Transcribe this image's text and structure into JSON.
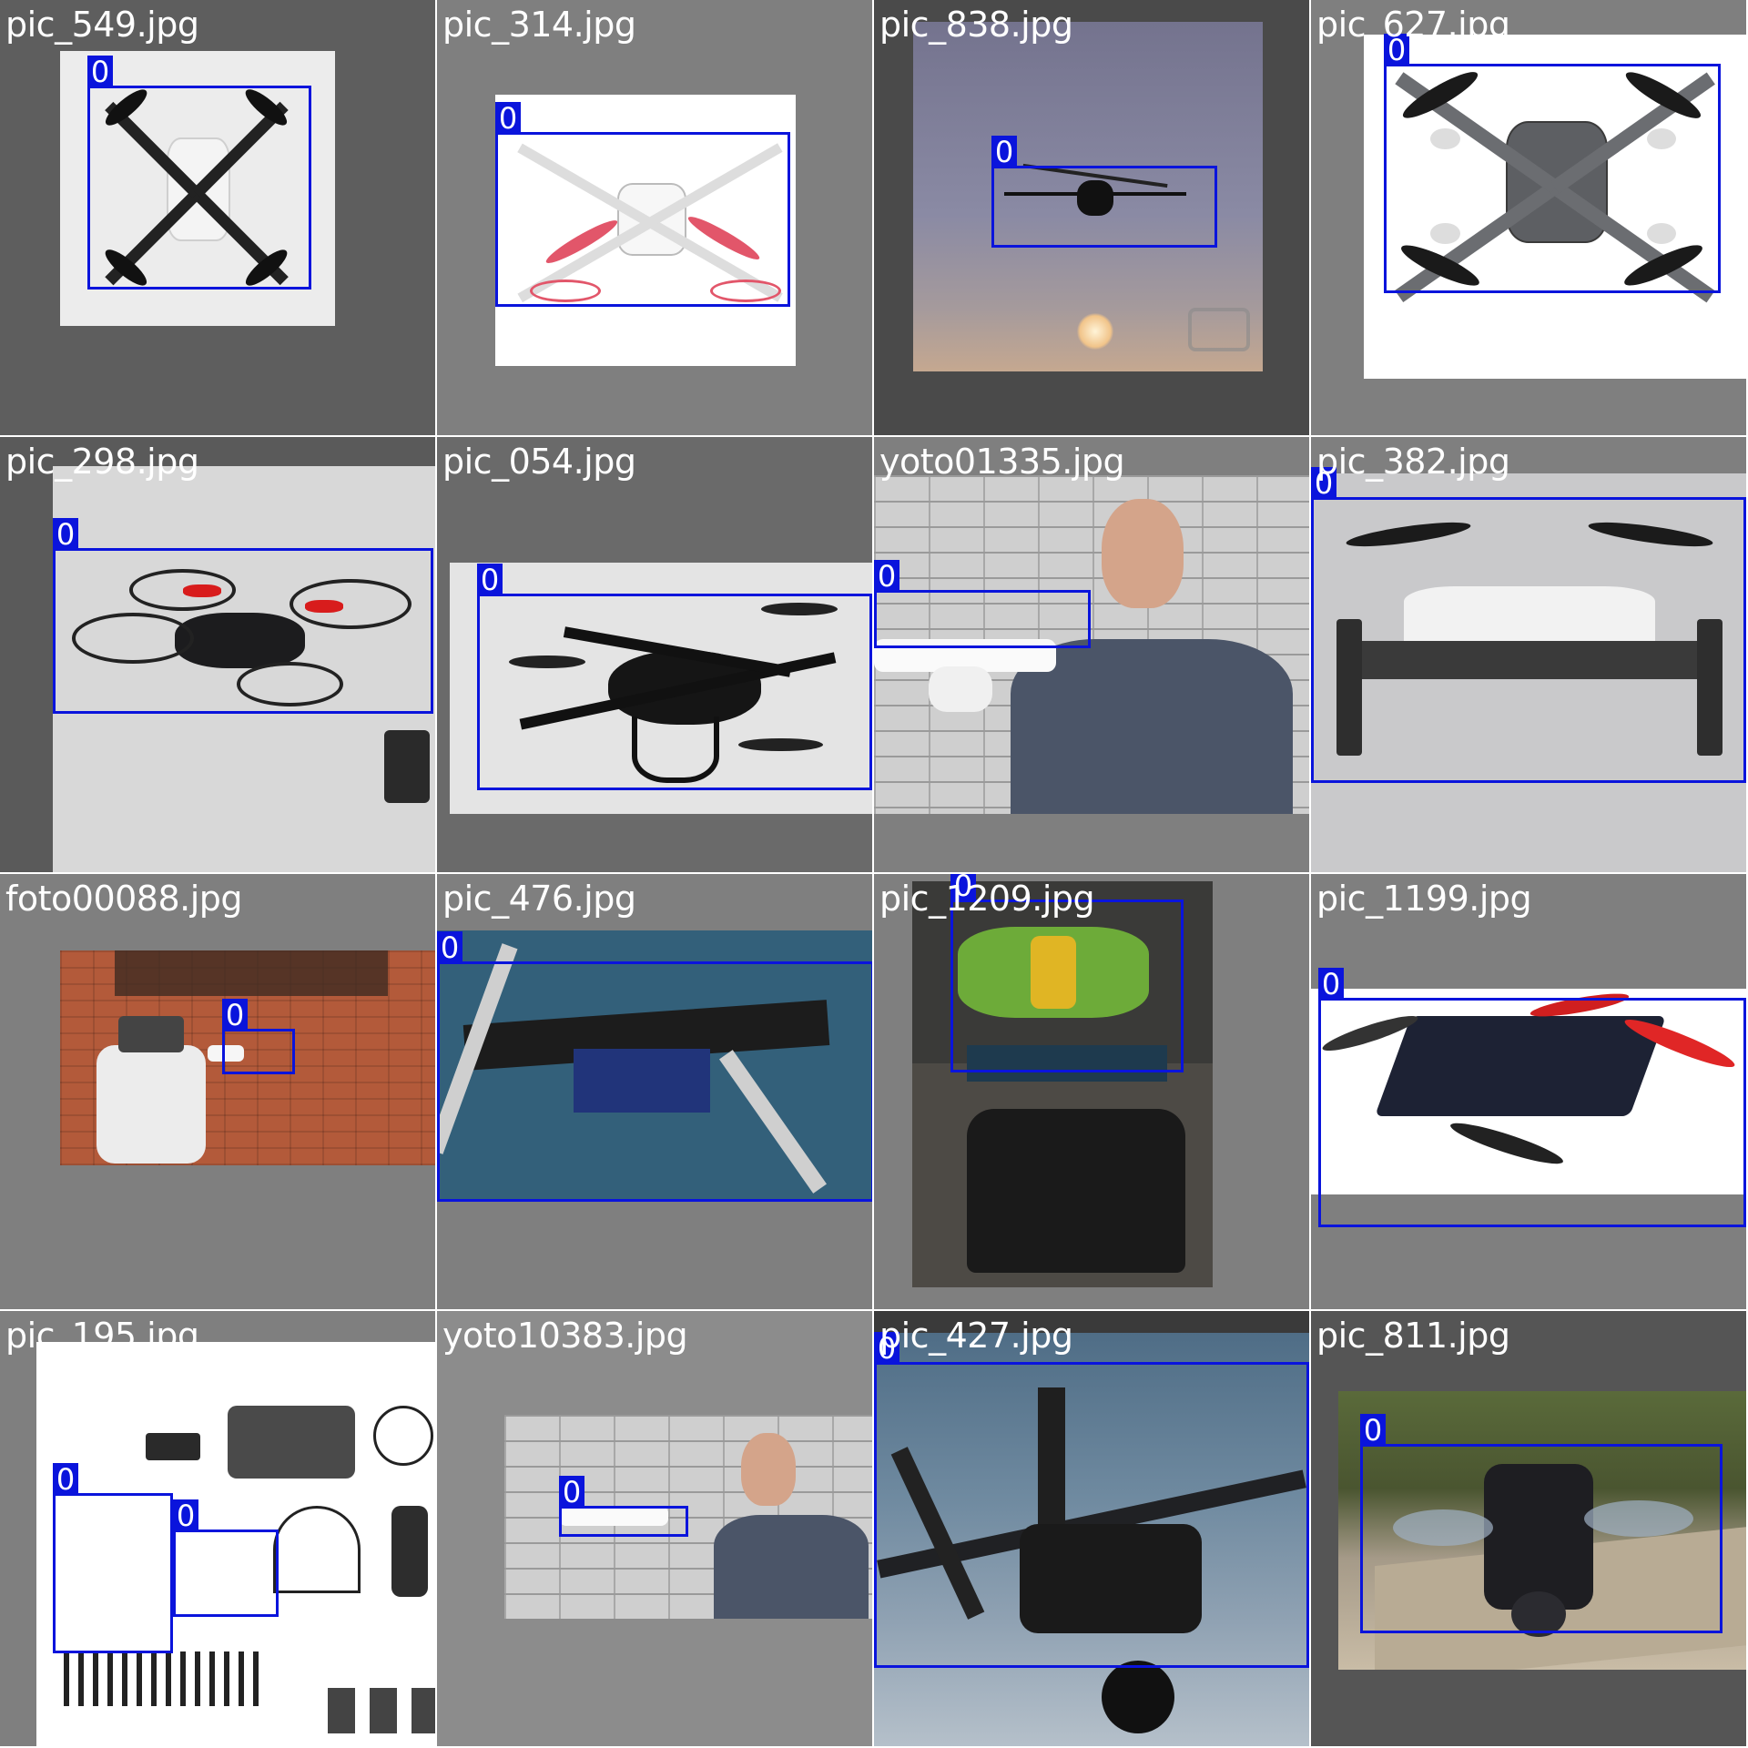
{
  "mosaic": {
    "class_label": "0",
    "tiles": [
      {
        "filename": "pic_549.jpg"
      },
      {
        "filename": "pic_314.jpg"
      },
      {
        "filename": "pic_838.jpg"
      },
      {
        "filename": "pic_627.jpg"
      },
      {
        "filename": "pic_298.jpg"
      },
      {
        "filename": "pic_054.jpg"
      },
      {
        "filename": "yoto01335.jpg"
      },
      {
        "filename": "pic_382.jpg"
      },
      {
        "filename": "foto00088.jpg"
      },
      {
        "filename": "pic_476.jpg"
      },
      {
        "filename": "pic_1209.jpg"
      },
      {
        "filename": "pic_1199.jpg"
      },
      {
        "filename": "pic_195.jpg"
      },
      {
        "filename": "yoto10383.jpg"
      },
      {
        "filename": "pic_427.jpg"
      },
      {
        "filename": "pic_811.jpg"
      }
    ]
  },
  "colors": {
    "box": "#0a14dc",
    "label_text": "#ffffff",
    "pad_gray": "#7f7f7f"
  }
}
